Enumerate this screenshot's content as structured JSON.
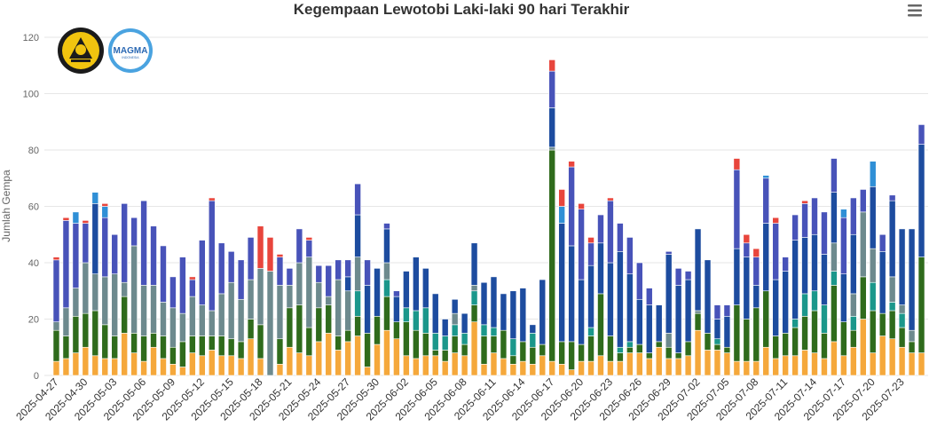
{
  "chart_data": {
    "type": "bar",
    "stacked": true,
    "title": "Kegempaan Lewotobi Laki-laki 90 hari Terakhir",
    "xlabel": "",
    "ylabel": "Jumlah Gempa",
    "ylim": [
      0,
      120
    ],
    "yticks": [
      0,
      20,
      40,
      60,
      80,
      100,
      120
    ],
    "grid": true,
    "legend": "none",
    "categories": [
      "2025-04-27",
      "2025-04-28",
      "2025-04-29",
      "2025-04-30",
      "2025-05-01",
      "2025-05-02",
      "2025-05-03",
      "2025-05-04",
      "2025-05-05",
      "2025-05-06",
      "2025-05-07",
      "2025-05-08",
      "2025-05-09",
      "2025-05-10",
      "2025-05-11",
      "2025-05-12",
      "2025-05-13",
      "2025-05-14",
      "2025-05-15",
      "2025-05-16",
      "2025-05-17",
      "2025-05-18",
      "2025-05-19",
      "2025-05-20",
      "2025-05-21",
      "2025-05-22",
      "2025-05-23",
      "2025-05-24",
      "2025-05-25",
      "2025-05-26",
      "2025-05-27",
      "2025-05-28",
      "2025-05-29",
      "2025-05-30",
      "2025-05-31",
      "2025-06-01",
      "2025-06-02",
      "2025-06-03",
      "2025-06-04",
      "2025-06-05",
      "2025-06-06",
      "2025-06-07",
      "2025-06-08",
      "2025-06-09",
      "2025-06-10",
      "2025-06-11",
      "2025-06-12",
      "2025-06-13",
      "2025-06-14",
      "2025-06-15",
      "2025-06-16",
      "2025-06-17",
      "2025-06-18",
      "2025-06-19",
      "2025-06-20",
      "2025-06-21",
      "2025-06-22",
      "2025-06-23",
      "2025-06-24",
      "2025-06-25",
      "2025-06-26",
      "2025-06-27",
      "2025-06-28",
      "2025-06-29",
      "2025-06-30",
      "2025-07-01",
      "2025-07-02",
      "2025-07-03",
      "2025-07-04",
      "2025-07-05",
      "2025-07-06",
      "2025-07-07",
      "2025-07-08",
      "2025-07-09",
      "2025-07-10",
      "2025-07-11",
      "2025-07-12",
      "2025-07-13",
      "2025-07-14",
      "2025-07-15",
      "2025-07-16",
      "2025-07-17",
      "2025-07-18",
      "2025-07-19",
      "2025-07-20",
      "2025-07-21",
      "2025-07-22",
      "2025-07-23",
      "2025-07-24",
      "2025-07-25"
    ],
    "series": [
      {
        "color": "#f5a83b",
        "values": [
          5,
          6,
          8,
          10,
          7,
          6,
          6,
          15,
          8,
          5,
          10,
          6,
          4,
          3,
          8,
          7,
          9,
          7,
          7,
          6,
          13,
          6,
          0,
          4,
          10,
          8,
          7,
          12,
          15,
          9,
          12,
          14,
          3,
          11,
          16,
          13,
          7,
          6,
          7,
          7,
          5,
          8,
          7,
          19,
          4,
          8,
          6,
          4,
          5,
          4,
          7,
          5,
          4,
          2,
          5,
          5,
          7,
          5,
          5,
          8,
          8,
          6,
          10,
          6,
          6,
          7,
          16,
          9,
          9,
          8,
          5,
          5,
          5,
          10,
          6,
          7,
          7,
          9,
          8,
          6,
          12,
          7,
          10,
          20,
          8,
          14,
          13,
          10,
          8,
          8
        ]
      },
      {
        "color": "#2f6b1c",
        "values": [
          11,
          8,
          13,
          12,
          16,
          12,
          8,
          13,
          7,
          9,
          5,
          8,
          6,
          9,
          6,
          7,
          5,
          7,
          6,
          6,
          7,
          12,
          0,
          9,
          14,
          17,
          10,
          12,
          10,
          5,
          4,
          7,
          12,
          10,
          12,
          6,
          12,
          10,
          8,
          2,
          4,
          6,
          4,
          6,
          10,
          6,
          10,
          3,
          7,
          6,
          4,
          75,
          8,
          10,
          6,
          9,
          22,
          9,
          3,
          2,
          3,
          2,
          2,
          4,
          2,
          5,
          6,
          6,
          2,
          2,
          20,
          15,
          19,
          20,
          8,
          8,
          10,
          12,
          15,
          9,
          20,
          12,
          6,
          15,
          15,
          8,
          10,
          7,
          4,
          34
        ]
      },
      {
        "color": "#1b978b",
        "values": [
          0,
          0,
          0,
          0,
          0,
          0,
          0,
          0,
          0,
          0,
          0,
          0,
          0,
          0,
          0,
          0,
          0,
          0,
          0,
          0,
          0,
          0,
          0,
          0,
          0,
          0,
          0,
          0,
          0,
          0,
          0,
          9,
          0,
          0,
          6,
          0,
          5,
          7,
          9,
          6,
          5,
          4,
          4,
          5,
          4,
          3,
          0,
          6,
          0,
          5,
          0,
          0,
          0,
          0,
          0,
          3,
          0,
          0,
          2,
          2,
          0,
          0,
          0,
          0,
          0,
          0,
          0,
          0,
          2,
          0,
          0,
          0,
          0,
          0,
          0,
          0,
          3,
          8,
          7,
          10,
          5,
          0,
          5,
          0,
          10,
          0,
          3,
          5,
          0,
          0
        ]
      },
      {
        "color": "#6d8a8e",
        "values": [
          3,
          10,
          10,
          18,
          13,
          17,
          22,
          5,
          31,
          18,
          17,
          12,
          14,
          10,
          14,
          11,
          9,
          15,
          20,
          15,
          14,
          20,
          37,
          19,
          8,
          15,
          25,
          9,
          3,
          20,
          14,
          12,
          0,
          0,
          6,
          0,
          0,
          0,
          0,
          0,
          0,
          4,
          0,
          2,
          0,
          0,
          0,
          0,
          0,
          0,
          0,
          1,
          0,
          0,
          0,
          0,
          0,
          0,
          0,
          0,
          0,
          0,
          0,
          5,
          0,
          0,
          1,
          0,
          0,
          0,
          0,
          0,
          0,
          0,
          0,
          0,
          0,
          0,
          0,
          0,
          10,
          0,
          8,
          23,
          12,
          0,
          9,
          3,
          4,
          0
        ]
      },
      {
        "color": "#1d4c9f",
        "values": [
          0,
          0,
          0,
          0,
          25,
          0,
          0,
          0,
          0,
          0,
          0,
          0,
          0,
          0,
          0,
          0,
          0,
          0,
          0,
          0,
          0,
          0,
          0,
          0,
          0,
          0,
          0,
          0,
          0,
          0,
          5,
          15,
          17,
          17,
          12,
          9,
          13,
          19,
          14,
          14,
          6,
          5,
          7,
          15,
          15,
          18,
          13,
          17,
          19,
          3,
          23,
          14,
          42,
          34,
          23,
          22,
          18,
          26,
          34,
          24,
          16,
          17,
          13,
          28,
          24,
          22,
          29,
          26,
          7,
          11,
          20,
          22,
          8,
          24,
          20,
          22,
          28,
          20,
          20,
          18,
          18,
          17,
          21,
          0,
          22,
          22,
          27,
          27,
          36,
          40
        ]
      },
      {
        "color": "#4853b9",
        "values": [
          22,
          31,
          23,
          14,
          0,
          21,
          14,
          28,
          10,
          30,
          21,
          20,
          11,
          20,
          6,
          23,
          39,
          18,
          11,
          14,
          15,
          0,
          0,
          10,
          6,
          12,
          6,
          6,
          11,
          7,
          6,
          11,
          9,
          0,
          2,
          2,
          0,
          0,
          0,
          0,
          0,
          0,
          0,
          0,
          0,
          0,
          0,
          0,
          0,
          0,
          0,
          13,
          0,
          28,
          25,
          8,
          10,
          22,
          10,
          13,
          13,
          6,
          0,
          1,
          6,
          3,
          0,
          0,
          5,
          4,
          28,
          5,
          10,
          16,
          20,
          5,
          9,
          12,
          13,
          15,
          12,
          20,
          13,
          8,
          0,
          6,
          2,
          0,
          0,
          7
        ]
      },
      {
        "color": "#2f8fd6",
        "values": [
          0,
          0,
          4,
          0,
          4,
          4,
          0,
          0,
          0,
          0,
          0,
          0,
          0,
          0,
          0,
          0,
          0,
          0,
          0,
          0,
          0,
          0,
          0,
          0,
          0,
          0,
          0,
          0,
          0,
          0,
          0,
          0,
          0,
          0,
          0,
          0,
          0,
          0,
          0,
          0,
          0,
          0,
          0,
          0,
          0,
          0,
          0,
          0,
          0,
          0,
          0,
          0,
          6,
          0,
          0,
          0,
          0,
          0,
          0,
          0,
          0,
          0,
          0,
          0,
          0,
          0,
          0,
          0,
          0,
          0,
          0,
          0,
          0,
          1,
          0,
          0,
          0,
          0,
          0,
          0,
          0,
          3,
          0,
          0,
          9,
          0,
          0,
          0,
          0,
          0
        ]
      },
      {
        "color": "#e8453c",
        "values": [
          1,
          1,
          0,
          1,
          0,
          1,
          0,
          0,
          0,
          0,
          0,
          0,
          0,
          0,
          1,
          0,
          1,
          0,
          0,
          0,
          0,
          15,
          12,
          1,
          0,
          0,
          1,
          0,
          0,
          0,
          0,
          0,
          0,
          0,
          0,
          0,
          0,
          0,
          0,
          0,
          0,
          0,
          0,
          0,
          0,
          0,
          0,
          0,
          0,
          0,
          0,
          4,
          6,
          2,
          2,
          2,
          0,
          1,
          0,
          0,
          0,
          0,
          0,
          0,
          0,
          0,
          0,
          0,
          0,
          0,
          4,
          3,
          3,
          0,
          2,
          0,
          0,
          1,
          0,
          0,
          0,
          0,
          0,
          0,
          0,
          0,
          0,
          0,
          0,
          0
        ]
      }
    ]
  },
  "logos": {
    "esdm": {
      "icon": "esdm-emblem-icon"
    },
    "magma": {
      "text": "MAGMA",
      "subtext": "INDONESIA"
    }
  },
  "toolbar": {
    "menu_icon": "hamburger-menu-icon"
  }
}
